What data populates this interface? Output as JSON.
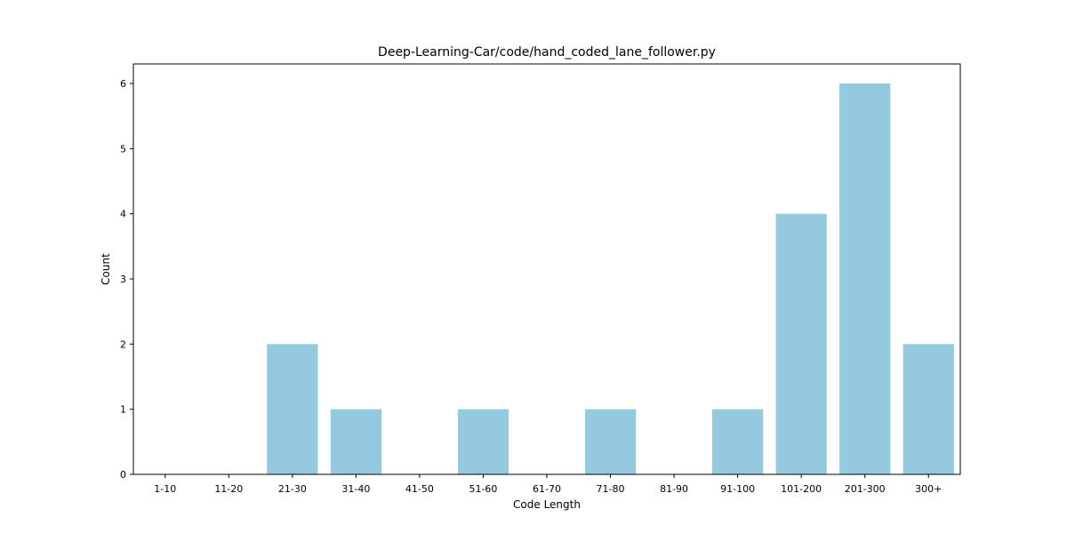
{
  "chart_data": {
    "type": "bar",
    "title": "Deep-Learning-Car/code/hand_coded_lane_follower.py",
    "xlabel": "Code Length",
    "ylabel": "Count",
    "categories": [
      "1-10",
      "11-20",
      "21-30",
      "31-40",
      "41-50",
      "51-60",
      "61-70",
      "71-80",
      "81-90",
      "91-100",
      "101-200",
      "201-300",
      "300+"
    ],
    "values": [
      0,
      0,
      2,
      1,
      0,
      1,
      0,
      1,
      0,
      1,
      4,
      6,
      2
    ],
    "ylim": [
      0,
      6.3
    ],
    "yticks": [
      0,
      1,
      2,
      3,
      4,
      5,
      6
    ],
    "grid": false,
    "bar_color": "#94c9df"
  }
}
